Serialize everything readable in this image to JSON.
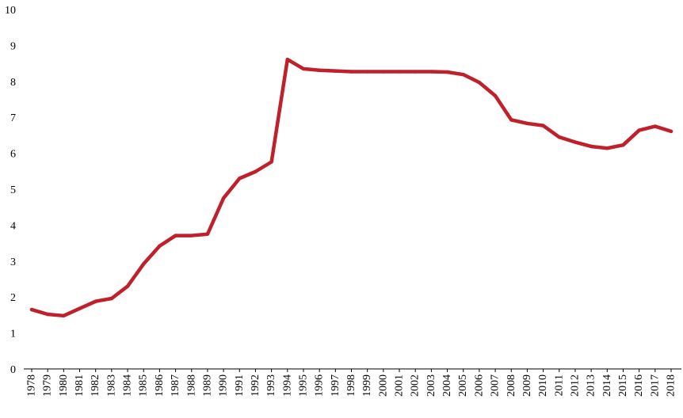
{
  "chart_data": {
    "type": "line",
    "title": "",
    "xlabel": "",
    "ylabel": "",
    "ylim": [
      0,
      10
    ],
    "y_ticks": [
      "0",
      "1",
      "2",
      "3",
      "4",
      "5",
      "6",
      "7",
      "8",
      "9",
      "10"
    ],
    "grid": false,
    "legend": "none",
    "categories": [
      "1978",
      "1979",
      "1980",
      "1981",
      "1982",
      "1983",
      "1984",
      "1985",
      "1986",
      "1987",
      "1988",
      "1989",
      "1990",
      "1991",
      "1992",
      "1993",
      "1994",
      "1995",
      "1996",
      "1997",
      "1998",
      "1999",
      "2000",
      "2001",
      "2002",
      "2003",
      "2004",
      "2005",
      "2006",
      "2007",
      "2008",
      "2009",
      "2010",
      "2011",
      "2012",
      "2013",
      "2014",
      "2015",
      "2016",
      "2017",
      "2018"
    ],
    "series": [
      {
        "color": "#c0202a",
        "values": [
          1.65,
          1.52,
          1.48,
          1.68,
          1.88,
          1.96,
          2.3,
          2.92,
          3.42,
          3.71,
          3.71,
          3.75,
          4.75,
          5.3,
          5.49,
          5.76,
          8.61,
          8.35,
          8.31,
          8.29,
          8.27,
          8.27,
          8.27,
          8.27,
          8.27,
          8.27,
          8.26,
          8.19,
          7.97,
          7.6,
          6.93,
          6.83,
          6.77,
          6.45,
          6.31,
          6.19,
          6.14,
          6.23,
          6.64,
          6.75,
          6.61
        ]
      }
    ]
  }
}
